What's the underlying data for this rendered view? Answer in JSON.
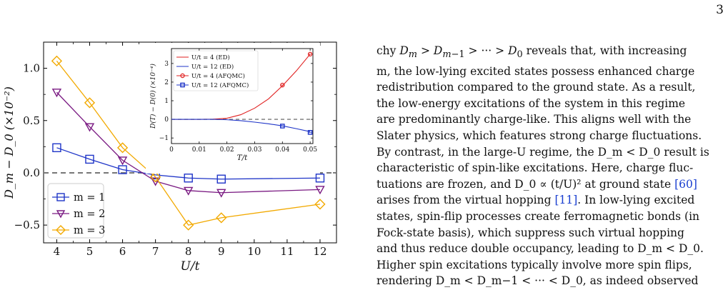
{
  "page": {
    "number": "3"
  },
  "figure": {
    "main": {
      "ylabel": "D_m − D_0 (×10⁻²)",
      "xlabel": "U/t",
      "x_ticks": [
        "4",
        "5",
        "6",
        "7",
        "8",
        "9",
        "10",
        "11",
        "12"
      ],
      "y_ticks": [
        "1.0",
        "0.5",
        "0.0",
        "−0.5"
      ],
      "legend": [
        "m = 1",
        "m = 2",
        "m = 3"
      ]
    },
    "inset": {
      "ylabel": "D(T) − D(0) (×10⁻⁴)",
      "xlabel": "T/t",
      "x_ticks": [
        "0",
        "0.01",
        "0.02",
        "0.03",
        "0.04",
        "0.05"
      ],
      "y_ticks": [
        "3",
        "2",
        "1",
        "0",
        "−1"
      ],
      "legend": [
        "U/t = 4 (ED)",
        "U/t = 12 (ED)",
        "U/t = 4 (AFQMC)",
        "U/t = 12 (AFQMC)"
      ]
    }
  },
  "chart_data": [
    {
      "type": "line",
      "x": [
        4,
        5,
        6,
        7,
        8,
        9,
        12
      ],
      "series": [
        {
          "name": "m = 1",
          "color": "#1f35c8",
          "marker": "square",
          "values": [
            0.24,
            0.13,
            0.03,
            -0.02,
            -0.05,
            -0.06,
            -0.05
          ]
        },
        {
          "name": "m = 2",
          "color": "#7a1a82",
          "marker": "triangle-down",
          "values": [
            0.77,
            0.44,
            0.12,
            -0.08,
            -0.17,
            -0.19,
            -0.16
          ]
        },
        {
          "name": "m = 3",
          "color": "#f2a900",
          "marker": "diamond",
          "values": [
            1.07,
            0.67,
            0.24,
            -0.04,
            -0.5,
            -0.43,
            -0.3
          ]
        }
      ],
      "xlabel": "U/t",
      "ylabel": "D_m − D_0 (×10⁻²)",
      "xlim": [
        3.6,
        12.5
      ],
      "ylim": [
        -0.67,
        1.25
      ],
      "reference_line": 0.0,
      "legend_position": "bottom-left"
    },
    {
      "type": "line",
      "series": [
        {
          "name": "U/t = 4 (ED)",
          "color": "#e02020",
          "x": [
            0,
            0.005,
            0.01,
            0.015,
            0.02,
            0.025,
            0.03,
            0.035,
            0.04,
            0.045,
            0.05
          ],
          "values": [
            0,
            0,
            0,
            0.01,
            0.06,
            0.25,
            0.6,
            1.1,
            1.8,
            2.6,
            3.5
          ]
        },
        {
          "name": "U/t = 12 (ED)",
          "color": "#1f35c8",
          "x": [
            0,
            0.005,
            0.01,
            0.015,
            0.02,
            0.025,
            0.03,
            0.035,
            0.04,
            0.045,
            0.05
          ],
          "values": [
            0,
            0,
            0,
            0,
            -0.02,
            -0.07,
            -0.15,
            -0.24,
            -0.35,
            -0.5,
            -0.66
          ]
        },
        {
          "name": "U/t = 4 (AFQMC)",
          "color": "#e02020",
          "x": [
            0.04,
            0.05
          ],
          "values": [
            1.84,
            3.5
          ]
        },
        {
          "name": "U/t = 12 (AFQMC)",
          "color": "#1f35c8",
          "x": [
            0.04,
            0.05
          ],
          "values": [
            -0.36,
            -0.7
          ]
        }
      ],
      "xlabel": "T/t",
      "ylabel": "D(T) − D(0) (×10⁻⁴)",
      "xlim": [
        0,
        0.051
      ],
      "ylim": [
        -1.3,
        3.8
      ],
      "reference_line": 0.0,
      "legend_position": "top-left"
    }
  ],
  "text": {
    "p1": [
      "chy D_m > D_m−1 > ··· > D_0 reveals that, with increasing",
      "m, the low-lying excited states possess enhanced charge",
      "redistribution compared to the ground state. As a result,",
      "the low-energy excitations of the system in this regime",
      "are predominantly charge-like. This aligns well with the",
      "Slater physics, which features strong charge fluctuations.",
      "By contrast, in the large-U regime, the D_m < D_0 result is",
      "characteristic of spin-like excitations. Here, charge fluc-",
      "tuations are frozen, and D_0 ∝ (t/U)² at ground state ",
      "arises from the virtual hopping ",
      ". In low-lying excited",
      "states, spin-flip processes create ferromagnetic bonds (in",
      "Fock-state basis), which suppress such virtual hopping",
      "and thus reduce double occupancy, leading to D_m < D_0.",
      "Higher spin excitations typically involve more spin flips,",
      "rendering D_m < D_m−1 < ··· < D_0, as indeed observed"
    ],
    "cite_60": "[60]",
    "cite_11": "[11]"
  }
}
